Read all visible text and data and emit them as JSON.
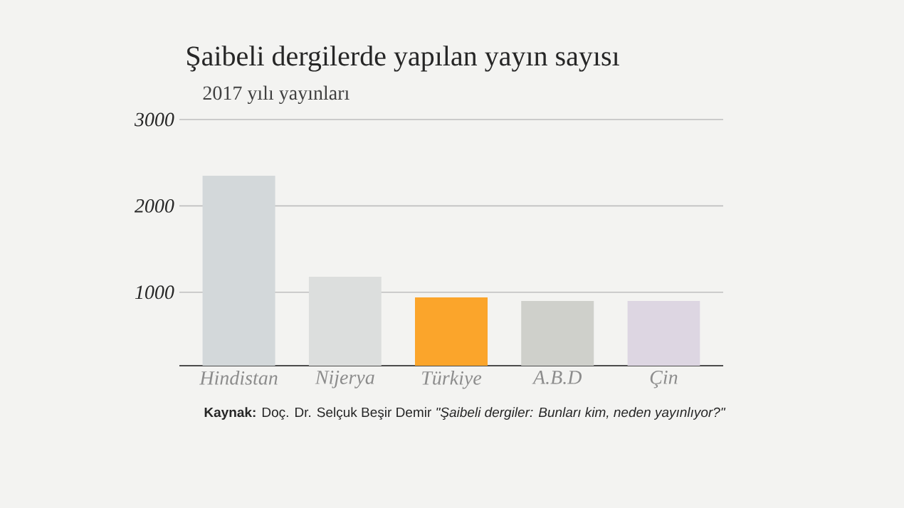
{
  "chart_data": {
    "type": "bar",
    "title": "Şaibeli dergilerde yapılan yayın sayısı",
    "subtitle": "2017 yılı yayınları",
    "categories": [
      "Hindistan",
      "Nijerya",
      "Türkiye",
      "A.B.D",
      "Çin"
    ],
    "values": [
      2350,
      1180,
      940,
      900,
      900
    ],
    "colors": [
      "#d3d8da",
      "#dcdedd",
      "#fba52b",
      "#cfd0cb",
      "#ddd6e2"
    ],
    "ylim": [
      150,
      3000
    ],
    "yticks": [
      1000,
      2000,
      3000
    ],
    "grid": "y",
    "annotations": [
      "**Kaynak:** Doç. Dr. Selçuk Beşir Demir *\"Şaibeli dergiler: Bunları kim, neden yayınlıyor?\"*"
    ]
  }
}
